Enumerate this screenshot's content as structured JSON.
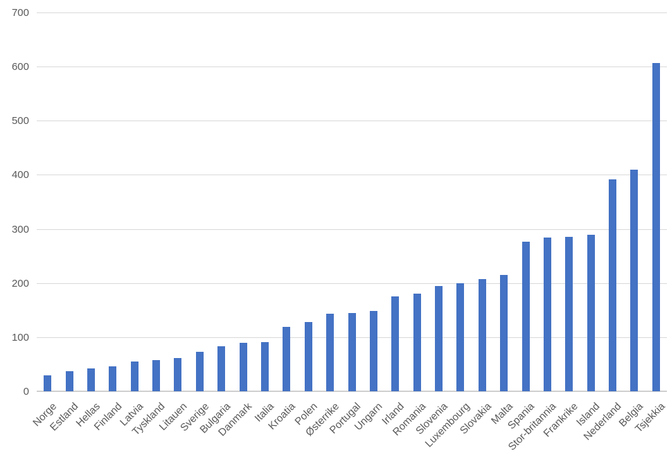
{
  "chart_data": {
    "type": "bar",
    "title": "",
    "xlabel": "",
    "ylabel": "",
    "categories": [
      "Norge",
      "Estland",
      "Hellas",
      "Finland",
      "Latvia",
      "Tyskland",
      "Litauen",
      "Sverige",
      "Bulgaria",
      "Danmark",
      "Italia",
      "Kroatia",
      "Polen",
      "Østerrike",
      "Portugal",
      "Ungarn",
      "Irland",
      "Romania",
      "Slovenia",
      "Luxembourg",
      "Slovakia",
      "Malta",
      "Spania",
      "Stor-britannia",
      "Frankrike",
      "Island",
      "Nederland",
      "Belgia",
      "Tsjekkia"
    ],
    "values": [
      30,
      37,
      42,
      46,
      55,
      58,
      62,
      73,
      83,
      90,
      91,
      119,
      128,
      143,
      145,
      149,
      175,
      181,
      195,
      199,
      207,
      215,
      277,
      284,
      286,
      289,
      392,
      410,
      607
    ],
    "ylim": [
      0,
      700
    ],
    "yticks": [
      0,
      100,
      200,
      300,
      400,
      500,
      600,
      700
    ],
    "grid": true,
    "legend": false,
    "colors": {
      "bar": "#4472c4",
      "gridline": "#d9d9d9",
      "axis_text": "#595959",
      "background": "#ffffff"
    }
  }
}
